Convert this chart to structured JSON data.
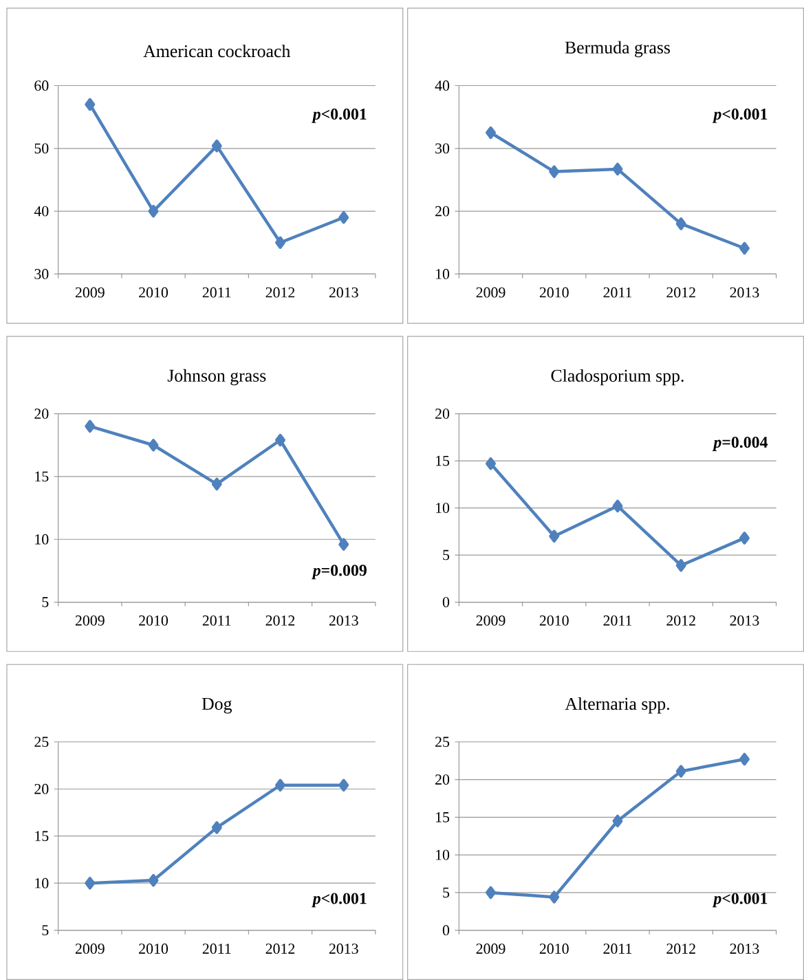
{
  "chart_data": [
    {
      "type": "line",
      "title": "American cockroach",
      "categories": [
        "2009",
        "2010",
        "2011",
        "2012",
        "2013"
      ],
      "values": [
        57,
        40,
        50.4,
        35,
        39
      ],
      "color": "#4f81bd",
      "ylim": [
        30,
        60
      ],
      "yticks": [
        30,
        40,
        50,
        60
      ],
      "grid": "y",
      "marker": "diamond",
      "annotations": [
        "*p*<0.001"
      ]
    },
    {
      "type": "line",
      "title": "Bermuda grass",
      "categories": [
        "2009",
        "2010",
        "2011",
        "2012",
        "2013"
      ],
      "values": [
        32.5,
        26.3,
        26.7,
        18,
        14.1
      ],
      "color": "#4f81bd",
      "ylim": [
        10,
        40
      ],
      "yticks": [
        10,
        20,
        30,
        40
      ],
      "grid": "y",
      "marker": "diamond",
      "annotations": [
        "*p*<0.001"
      ]
    },
    {
      "type": "line",
      "title": "Johnson grass",
      "categories": [
        "2009",
        "2010",
        "2011",
        "2012",
        "2013"
      ],
      "values": [
        19,
        17.5,
        14.4,
        17.9,
        9.6
      ],
      "color": "#4f81bd",
      "ylim": [
        5,
        20
      ],
      "yticks": [
        5,
        10,
        15,
        20
      ],
      "grid": "y",
      "marker": "diamond",
      "annotations": [
        "*p*=0.009"
      ]
    },
    {
      "type": "line",
      "title": "Cladosporium spp.",
      "categories": [
        "2009",
        "2010",
        "2011",
        "2012",
        "2013"
      ],
      "values": [
        14.7,
        7,
        10.2,
        3.9,
        6.8
      ],
      "color": "#4f81bd",
      "ylim": [
        0,
        20
      ],
      "yticks": [
        0,
        5,
        10,
        15,
        20
      ],
      "grid": "y",
      "marker": "diamond",
      "annotations": [
        "*p*=0.004"
      ]
    },
    {
      "type": "line",
      "title": "Dog",
      "categories": [
        "2009",
        "2010",
        "2011",
        "2012",
        "2013"
      ],
      "values": [
        10,
        10.3,
        15.9,
        20.4,
        20.4
      ],
      "color": "#4f81bd",
      "ylim": [
        5,
        25
      ],
      "yticks": [
        5,
        10,
        15,
        20,
        25
      ],
      "grid": "y",
      "marker": "diamond",
      "annotations": [
        "*p*<0.001"
      ]
    },
    {
      "type": "line",
      "title": "Alternaria spp.",
      "categories": [
        "2009",
        "2010",
        "2011",
        "2012",
        "2013"
      ],
      "values": [
        5,
        4.4,
        14.5,
        21.1,
        22.7
      ],
      "color": "#4f81bd",
      "ylim": [
        0,
        25
      ],
      "yticks": [
        0,
        5,
        10,
        15,
        20,
        25
      ],
      "grid": "y",
      "marker": "diamond",
      "annotations": [
        "*p*<0.001"
      ]
    }
  ]
}
